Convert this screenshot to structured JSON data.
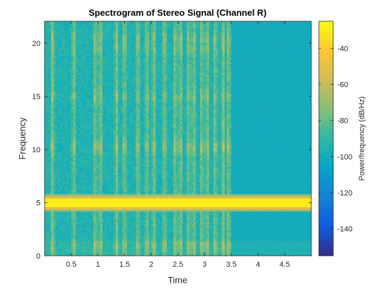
{
  "chart_data": {
    "type": "heatmap",
    "title": "Spectrogram of Stereo Signal (Channel R)",
    "xlabel": "Time",
    "ylabel": "Frequency",
    "colorbar_label": "Power/frequency (dB/Hz)",
    "xlim": [
      0,
      5
    ],
    "ylim": [
      0,
      22.05
    ],
    "clim": [
      -155,
      -25
    ],
    "xticks": [
      0.5,
      1,
      1.5,
      2,
      2.5,
      3,
      3.5,
      4,
      4.5
    ],
    "xtick_labels": [
      "0.5",
      "1",
      "1.5",
      "2",
      "2.5",
      "3",
      "3.5",
      "4",
      "4.5"
    ],
    "yticks": [
      0,
      5,
      10,
      15,
      20
    ],
    "ytick_labels": [
      "0",
      "5",
      "10",
      "15",
      "20"
    ],
    "colorbar_ticks": [
      -140,
      -120,
      -100,
      -80,
      -60,
      -40
    ],
    "colorbar_tick_labels": [
      "-140",
      "-120",
      "-100",
      "-80",
      "-60",
      "-40"
    ],
    "colormap": "parula",
    "colormap_stops": [
      "#352a87",
      "#0f5cdd",
      "#1481d6",
      "#06a4ca",
      "#2eb7a4",
      "#87bf77",
      "#d1bb59",
      "#fec832",
      "#f9fb0e"
    ],
    "features": {
      "tone_frequency": 5,
      "tone_level_db": -30,
      "background_level_db": -95,
      "quiet_level_db": -100,
      "active_time_range": [
        0,
        3.5
      ],
      "burst_times": [
        0.15,
        0.55,
        0.95,
        1.05,
        1.35,
        1.5,
        1.75,
        1.92,
        2.05,
        2.25,
        2.45,
        2.55,
        2.7,
        2.8,
        2.95,
        3.05,
        3.2,
        3.35,
        3.45
      ],
      "harmonic_bands": [
        1,
        10,
        10.5,
        15,
        19.5,
        20.5
      ]
    }
  }
}
